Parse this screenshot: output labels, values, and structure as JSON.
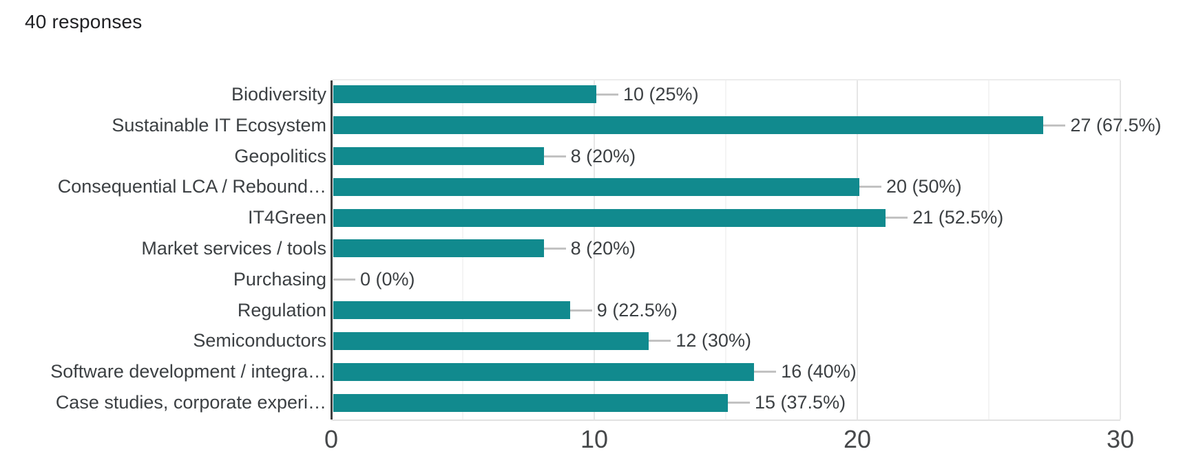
{
  "header": {
    "responses_count": "40 responses"
  },
  "chart_data": {
    "type": "bar",
    "orientation": "horizontal",
    "title": "40 responses",
    "categories": [
      "Biodiversity",
      "Sustainable IT Ecosystem",
      "Geopolitics",
      "Consequential LCA / Rebound…",
      "IT4Green",
      "Market services / tools",
      "Purchasing",
      "Regulation",
      "Semiconductors",
      "Software development / integra…",
      "Case studies, corporate experi…"
    ],
    "values": [
      10,
      27,
      8,
      20,
      21,
      8,
      0,
      9,
      12,
      16,
      15
    ],
    "value_labels": [
      "10 (25%)",
      "27 (67.5%)",
      "8 (20%)",
      "20 (50%)",
      "21 (52.5%)",
      "8 (20%)",
      "0 (0%)",
      "9 (22.5%)",
      "12 (30%)",
      "16 (40%)",
      "15 (37.5%)"
    ],
    "percentages": [
      25,
      67.5,
      20,
      50,
      52.5,
      20,
      0,
      22.5,
      30,
      40,
      37.5
    ],
    "total_responses": 40,
    "xlabel": "",
    "ylabel": "",
    "x_ticks": [
      0,
      10,
      20,
      30
    ],
    "xlim": [
      0,
      30
    ],
    "legend": "none",
    "grid": "vertical-major-and-minor",
    "colors": {
      "bar": "#118a8e",
      "connector": "#c2c2c2",
      "axis_line": "#3f3f3f",
      "gridline_major": "#e6e6e6",
      "gridline_minor": "#f4f4f4",
      "label_text": "#3c4043",
      "tick_text": "#46484a",
      "title_text": "#202124",
      "background": "#ffffff"
    }
  }
}
